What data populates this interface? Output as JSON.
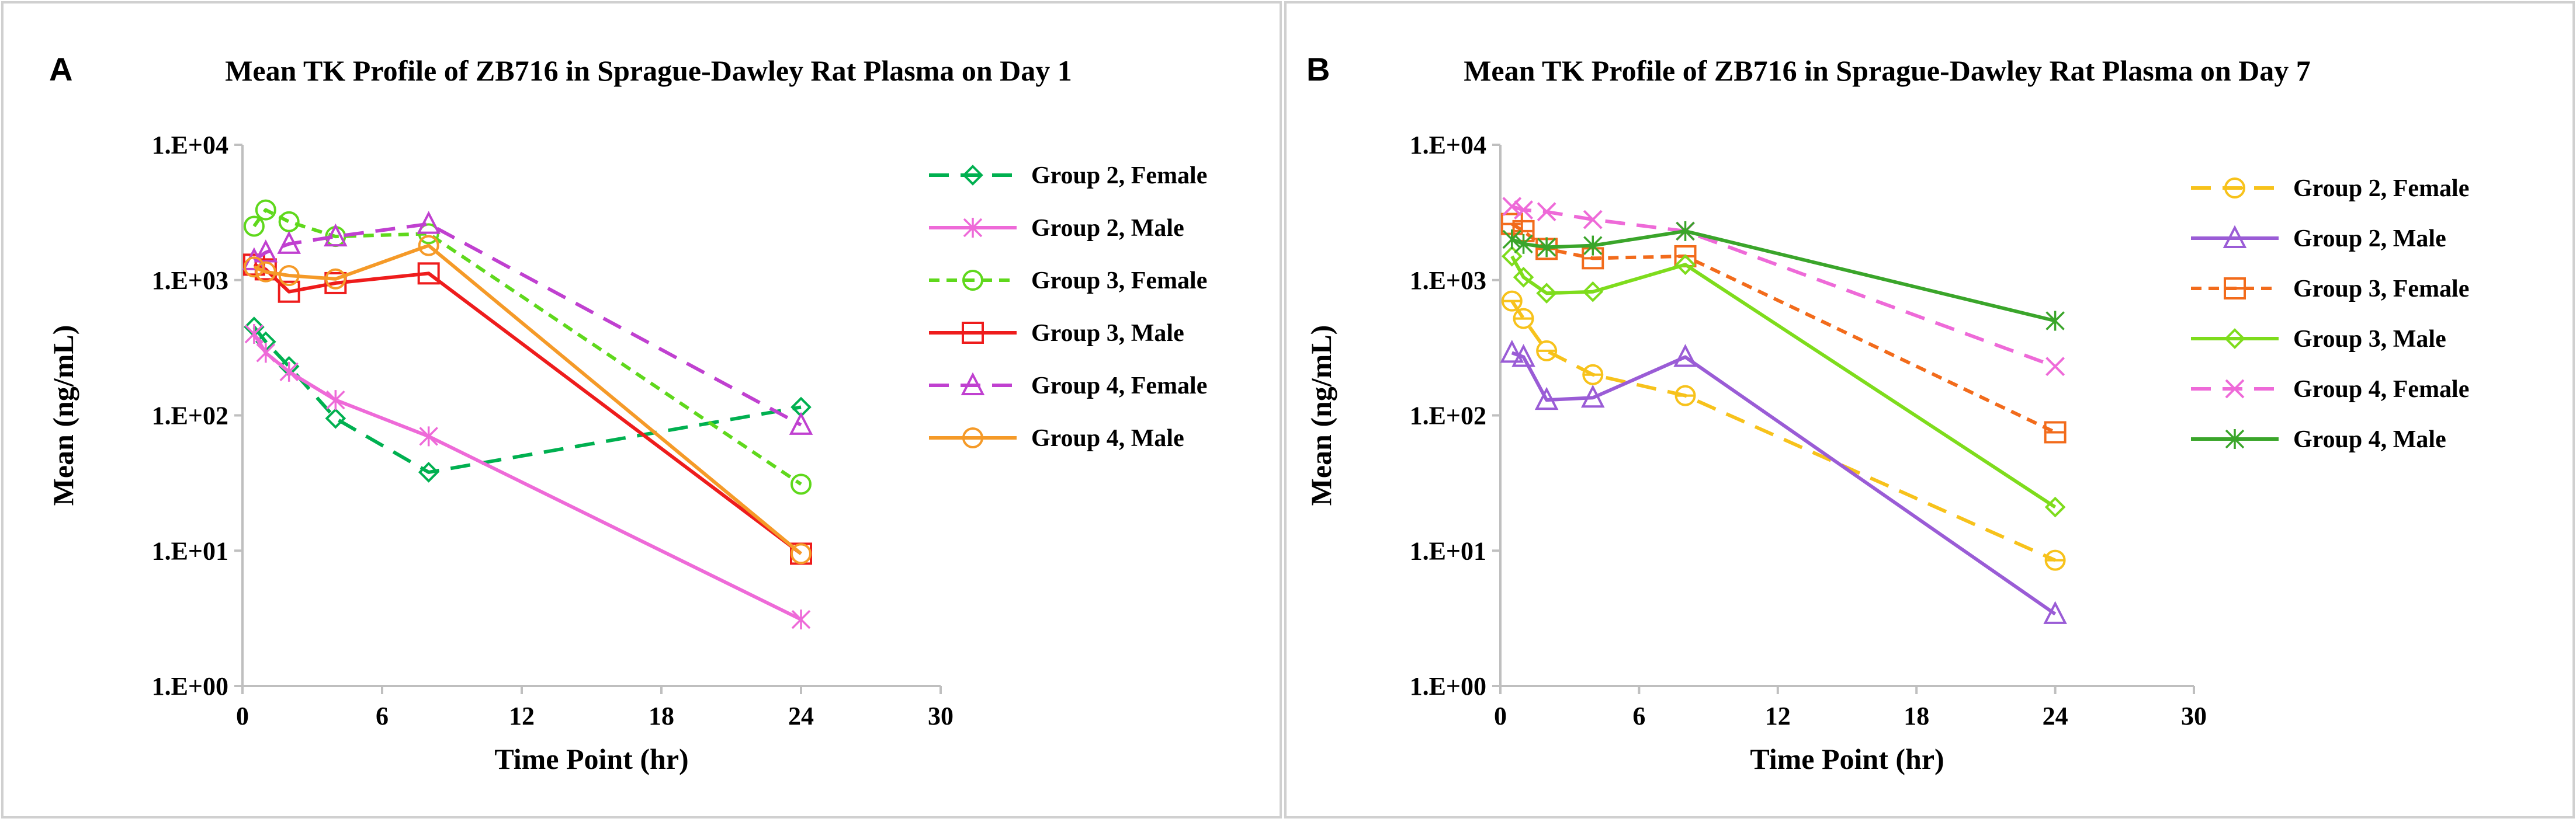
{
  "chart_data": [
    {
      "panel_label": "A",
      "type": "line",
      "title": "Mean TK Profile of ZB716 in Sprague-Dawley Rat Plasma on Day 1",
      "xlabel": "Time Point (hr)",
      "ylabel": "Mean (ng/mL)",
      "xlim": [
        0,
        30
      ],
      "xticks": [
        0,
        6,
        12,
        18,
        24,
        30
      ],
      "ylim": [
        1,
        10000
      ],
      "yscale": "log",
      "yticks": [
        1,
        10,
        100,
        1000,
        10000
      ],
      "ytick_labels": [
        "1.E+00",
        "1.E+01",
        "1.E+02",
        "1.E+03",
        "1.E+04"
      ],
      "grid": false,
      "legend_position": "right",
      "series": [
        {
          "name": "Group 2, Female",
          "color": "#00b050",
          "dash": "long",
          "marker": "diamond",
          "x": [
            0.5,
            1,
            2,
            4,
            8,
            24
          ],
          "y": [
            450,
            350,
            230,
            95,
            38,
            115
          ]
        },
        {
          "name": "Group 2, Male",
          "color": "#ee6ad8",
          "dash": "solid",
          "marker": "star",
          "x": [
            0.5,
            1,
            2,
            4,
            8,
            24
          ],
          "y": [
            400,
            290,
            210,
            130,
            70,
            3.1
          ]
        },
        {
          "name": "Group 3, Female",
          "color": "#5fd81c",
          "dash": "short",
          "marker": "circle",
          "x": [
            0.5,
            1,
            2,
            4,
            8,
            24
          ],
          "y": [
            2500,
            3300,
            2700,
            2100,
            2200,
            31
          ]
        },
        {
          "name": "Group 3, Male",
          "color": "#ee1c1c",
          "dash": "solid",
          "marker": "square",
          "x": [
            0.5,
            1,
            2,
            4,
            8,
            24
          ],
          "y": [
            1300,
            1200,
            820,
            950,
            1120,
            9.5
          ]
        },
        {
          "name": "Group 4, Female",
          "color": "#c040d0",
          "dash": "long",
          "marker": "triangle",
          "x": [
            0.5,
            1,
            2,
            4,
            8,
            24
          ],
          "y": [
            1400,
            1600,
            1850,
            2100,
            2600,
            85
          ]
        },
        {
          "name": "Group 4, Male",
          "color": "#f59a28",
          "dash": "solid",
          "marker": "circle",
          "x": [
            0.5,
            1,
            2,
            4,
            8,
            24
          ],
          "y": [
            1250,
            1150,
            1080,
            1020,
            1800,
            9.5
          ]
        }
      ]
    },
    {
      "panel_label": "B",
      "type": "line",
      "title": "Mean TK Profile of ZB716 in Sprague-Dawley Rat Plasma on Day 7",
      "xlabel": "Time Point (hr)",
      "ylabel": "Mean (ng/mL)",
      "xlim": [
        0,
        30
      ],
      "xticks": [
        0,
        6,
        12,
        18,
        24,
        30
      ],
      "ylim": [
        1,
        10000
      ],
      "yscale": "log",
      "yticks": [
        1,
        10,
        100,
        1000,
        10000
      ],
      "ytick_labels": [
        "1.E+00",
        "1.E+01",
        "1.E+02",
        "1.E+03",
        "1.E+04"
      ],
      "grid": false,
      "legend_position": "right",
      "series": [
        {
          "name": "Group 2, Female",
          "color": "#f7c21b",
          "dash": "long",
          "marker": "circle-bar",
          "x": [
            0.5,
            1,
            2,
            4,
            8,
            24
          ],
          "y": [
            700,
            520,
            300,
            200,
            140,
            8.5
          ]
        },
        {
          "name": "Group 2, Male",
          "color": "#9a5cd6",
          "dash": "solid",
          "marker": "triangle",
          "x": [
            0.5,
            1,
            2,
            4,
            8,
            24
          ],
          "y": [
            290,
            270,
            130,
            135,
            270,
            3.4
          ]
        },
        {
          "name": "Group 3, Female",
          "color": "#f26b1b",
          "dash": "short",
          "marker": "square-bar",
          "x": [
            0.5,
            1,
            2,
            4,
            8,
            24
          ],
          "y": [
            2600,
            2300,
            1700,
            1450,
            1500,
            75
          ]
        },
        {
          "name": "Group 3, Male",
          "color": "#7edc1c",
          "dash": "solid",
          "marker": "diamond",
          "x": [
            0.5,
            1,
            2,
            4,
            8,
            24
          ],
          "y": [
            1500,
            1050,
            800,
            820,
            1300,
            21
          ]
        },
        {
          "name": "Group 4, Female",
          "color": "#ee6ad8",
          "dash": "long",
          "marker": "x",
          "x": [
            0.5,
            1,
            2,
            4,
            8,
            24
          ],
          "y": [
            3500,
            3300,
            3200,
            2800,
            2300,
            230
          ]
        },
        {
          "name": "Group 4, Male",
          "color": "#3aa52a",
          "dash": "solid",
          "marker": "star",
          "x": [
            0.5,
            1,
            2,
            4,
            8,
            24
          ],
          "y": [
            2000,
            1850,
            1750,
            1800,
            2300,
            500
          ]
        }
      ]
    }
  ]
}
